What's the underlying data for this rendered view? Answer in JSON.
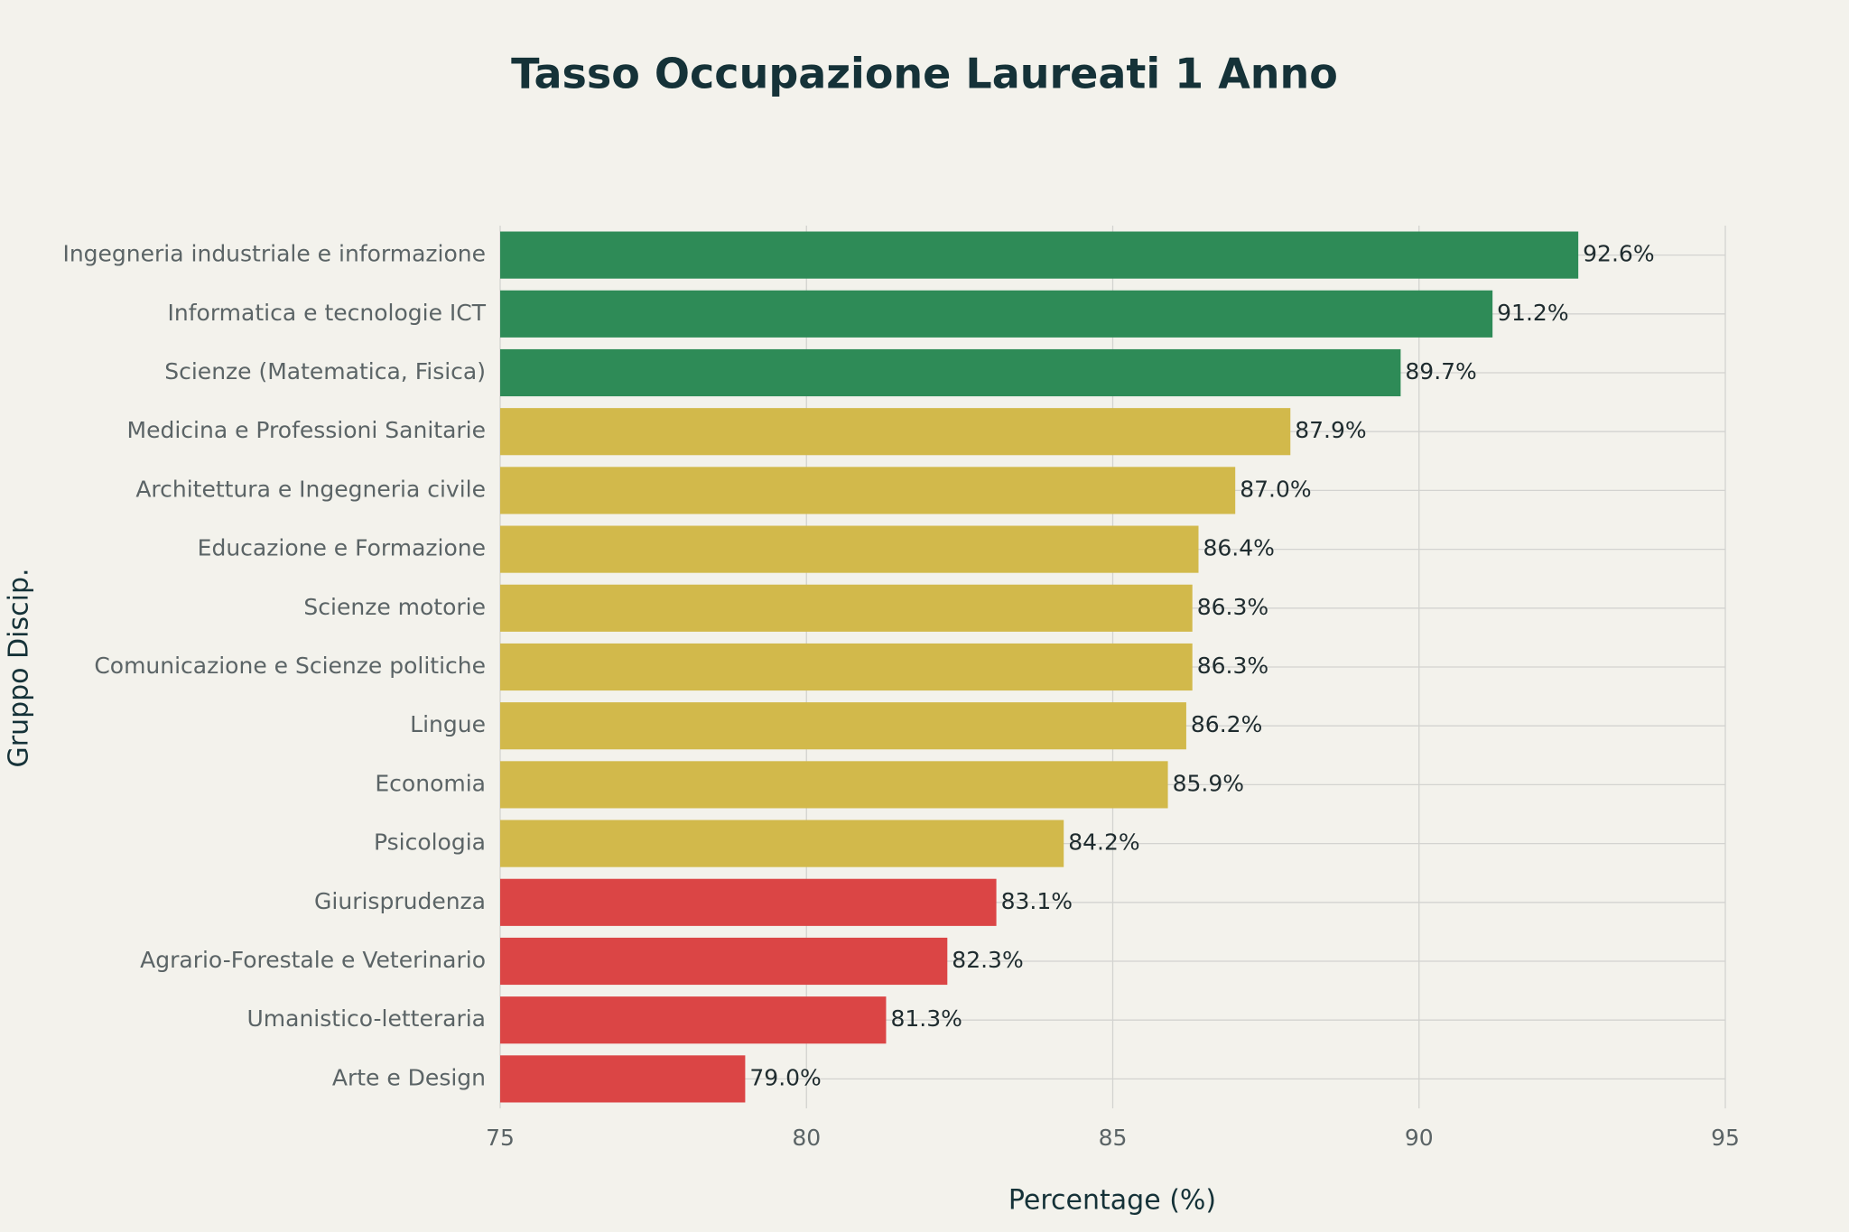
{
  "chart_data": {
    "type": "barh",
    "title": "Tasso Occupazione Laureati 1 Anno",
    "x_label": "Percentage (%)",
    "y_label": "Gruppo Discip.",
    "categories": [
      "Ingegneria industriale e informazione",
      "Informatica e tecnologie ICT",
      "Scienze (Matematica, Fisica)",
      "Medicina e Professioni Sanitarie",
      "Architettura e Ingegneria civile",
      "Educazione e Formazione",
      "Scienze motorie",
      "Comunicazione e Scienze politiche",
      "Lingue",
      "Economia",
      "Psicologia",
      "Giurisprudenza",
      "Agrario-Forestale e Veterinario",
      "Umanistico-letteraria",
      "Arte e Design"
    ],
    "values": [
      92.6,
      91.2,
      89.7,
      87.9,
      87.0,
      86.4,
      86.3,
      86.3,
      86.2,
      85.9,
      84.2,
      83.1,
      82.3,
      81.3,
      79.0
    ],
    "value_labels": [
      "92.6%",
      "91.2%",
      "89.7%",
      "87.9%",
      "87.0%",
      "86.4%",
      "86.3%",
      "86.3%",
      "86.2%",
      "85.9%",
      "84.2%",
      "83.1%",
      "82.3%",
      "81.3%",
      "79.0%"
    ],
    "colors": [
      "#2e8b57",
      "#2e8b57",
      "#2e8b57",
      "#d2b94b",
      "#d2b94b",
      "#d2b94b",
      "#d2b94b",
      "#d2b94b",
      "#d2b94b",
      "#d2b94b",
      "#d2b94b",
      "#db4545",
      "#db4545",
      "#db4545",
      "#db4545"
    ],
    "xlim": [
      75,
      95
    ],
    "xticks": [
      75,
      80,
      85,
      90,
      95
    ],
    "grid": true
  }
}
